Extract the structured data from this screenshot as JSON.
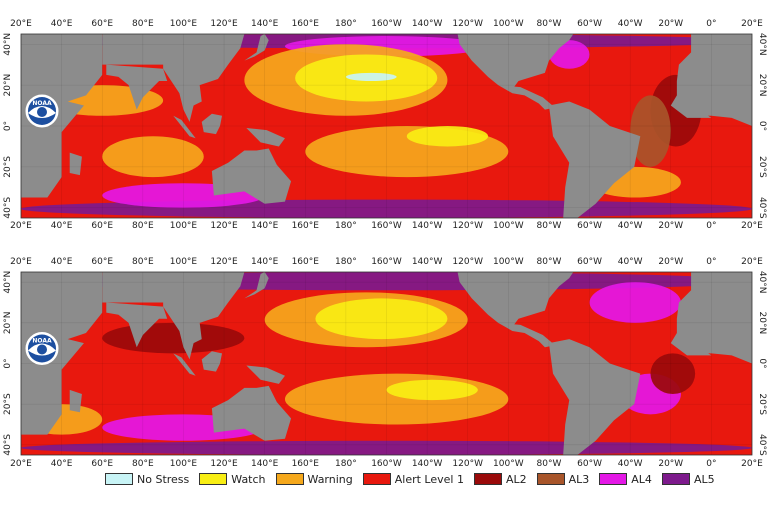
{
  "figure": {
    "panels": [
      {
        "name": "top-panel",
        "lon_labels": [
          "20°E",
          "40°E",
          "60°E",
          "80°E",
          "100°E",
          "120°E",
          "140°E",
          "160°E",
          "180°",
          "160°W",
          "140°W",
          "120°W",
          "100°W",
          "80°W",
          "60°W",
          "40°W",
          "20°W",
          "0°",
          "20°E"
        ],
        "lat_labels": [
          "40°N",
          "20°N",
          "0°",
          "20°S",
          "40°S"
        ]
      },
      {
        "name": "bottom-panel",
        "lon_labels": [
          "20°E",
          "40°E",
          "60°E",
          "80°E",
          "100°E",
          "120°E",
          "140°E",
          "160°E",
          "180°",
          "160°W",
          "140°W",
          "120°W",
          "100°W",
          "80°W",
          "60°W",
          "40°W",
          "20°W",
          "0°",
          "20°E"
        ],
        "lat_labels": [
          "40°N",
          "20°N",
          "0°",
          "20°S",
          "40°S"
        ]
      }
    ],
    "logo_text": "NOAA",
    "colors": {
      "land": "#8c8c8c",
      "no_stress": "#c8f4f6",
      "watch": "#f8ee14",
      "warning": "#f5a81c",
      "alert1": "#e8180e",
      "al2": "#9a0a0a",
      "al3": "#a8552a",
      "al4": "#e418e6",
      "al5": "#7d1a8c"
    }
  },
  "legend": {
    "items": [
      {
        "label": "No Stress",
        "color": "#c8f4f6"
      },
      {
        "label": "Watch",
        "color": "#f8ee14"
      },
      {
        "label": "Warning",
        "color": "#f5a81c"
      },
      {
        "label": "Alert Level 1",
        "color": "#e8180e"
      },
      {
        "label": "AL2",
        "color": "#9a0a0a"
      },
      {
        "label": "AL3",
        "color": "#a8552a"
      },
      {
        "label": "AL4",
        "color": "#e418e6"
      },
      {
        "label": "AL5",
        "color": "#7d1a8c"
      }
    ]
  }
}
